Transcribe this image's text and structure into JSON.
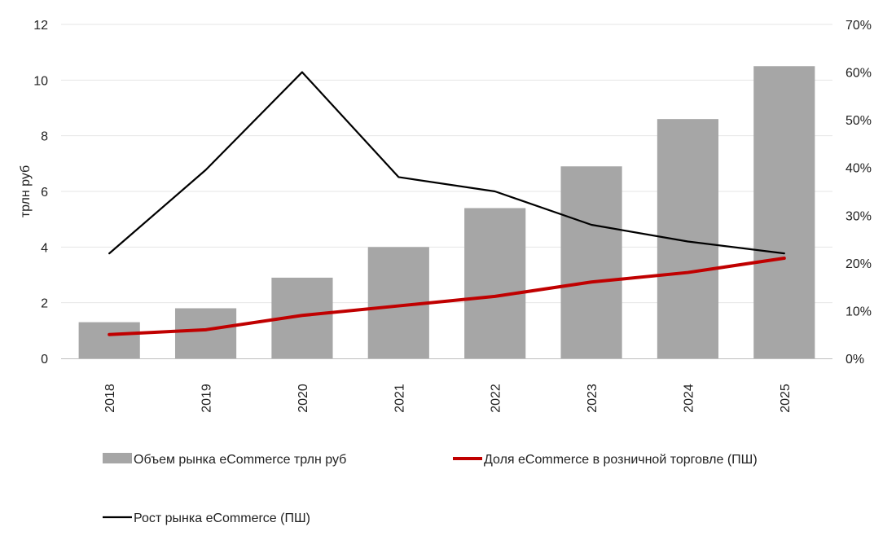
{
  "chart_data": {
    "type": "bar",
    "categories": [
      "2018",
      "2019",
      "2020",
      "2021",
      "2022",
      "2023",
      "2024",
      "2025"
    ],
    "ylabel": "трлн руб",
    "ylim": [
      0,
      12
    ],
    "y_ticks": [
      "0",
      "2",
      "4",
      "6",
      "8",
      "10",
      "12"
    ],
    "y2lim": [
      0,
      70
    ],
    "y2_ticks": [
      "0%",
      "10%",
      "20%",
      "30%",
      "40%",
      "50%",
      "60%",
      "70%"
    ],
    "grid": true,
    "legend_position": "bottom",
    "series": [
      {
        "name": "Объем рынка eCommerce трлн руб",
        "type": "bar",
        "axis": "left",
        "color": "#a6a6a6",
        "values": [
          1.3,
          1.8,
          2.9,
          4.0,
          5.4,
          6.9,
          8.6,
          10.5
        ]
      },
      {
        "name": "Доля eCommerce в розничной торговле (ПШ)",
        "type": "line",
        "axis": "right",
        "color": "#c00000",
        "values": [
          5,
          6,
          9,
          11,
          13,
          16,
          18,
          21
        ]
      },
      {
        "name": "Рост рынка eCommerce (ПШ)",
        "type": "line",
        "axis": "right",
        "color": "#000000",
        "values": [
          22,
          39.5,
          60,
          38,
          35,
          28,
          24.5,
          22
        ]
      }
    ]
  }
}
